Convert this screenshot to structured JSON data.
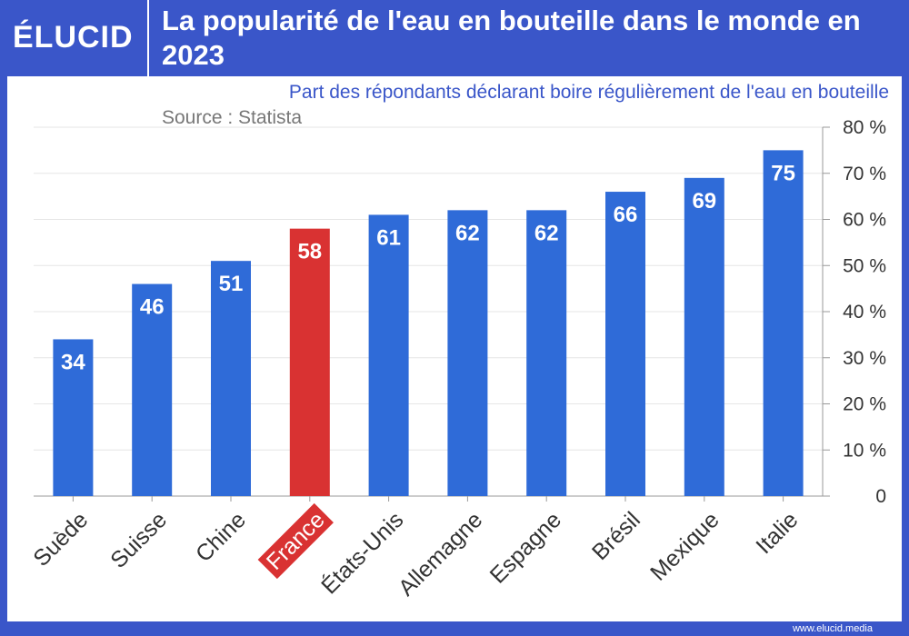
{
  "logo": "ÉLUCID",
  "footer": "www.elucid.media",
  "chart_data": {
    "type": "bar",
    "title": "La popularité de l'eau en bouteille dans le monde en 2023",
    "subtitle": "Part des répondants déclarant boire régulièrement de l'eau en bouteille",
    "source": "Source : Statista",
    "categories": [
      "Suède",
      "Suisse",
      "Chine",
      "France",
      "États-Unis",
      "Allemagne",
      "Espagne",
      "Brésil",
      "Mexique",
      "Italie"
    ],
    "values": [
      34,
      46,
      51,
      58,
      61,
      62,
      62,
      66,
      69,
      75
    ],
    "colors": [
      "#2f6bd8",
      "#2f6bd8",
      "#2f6bd8",
      "#d93232",
      "#2f6bd8",
      "#2f6bd8",
      "#2f6bd8",
      "#2f6bd8",
      "#2f6bd8",
      "#2f6bd8"
    ],
    "highlight_label": "France",
    "ylim": [
      0,
      80
    ],
    "yticks": [
      0,
      {
        "value": 10,
        "label": "10 %"
      },
      {
        "value": 20,
        "label": "20 %"
      },
      {
        "value": 30,
        "label": "30 %"
      },
      {
        "value": 40,
        "label": "40 %"
      },
      {
        "value": 50,
        "label": "50 %"
      },
      {
        "value": 60,
        "label": "60 %"
      },
      {
        "value": 70,
        "label": "70 %"
      },
      {
        "value": 80,
        "label": "80 %"
      }
    ],
    "grid": true,
    "axis_side": "right"
  }
}
